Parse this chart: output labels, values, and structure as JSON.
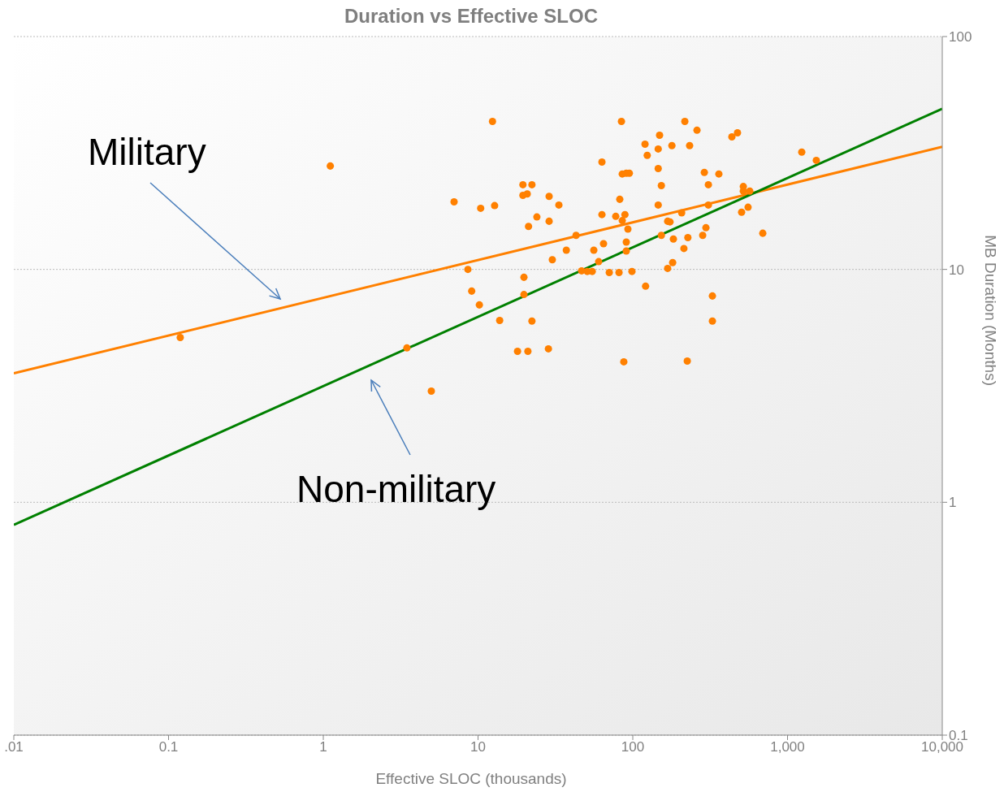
{
  "chart_data": {
    "type": "scatter",
    "title": "Duration vs Effective SLOC",
    "xlabel": "Effective SLOC (thousands)",
    "ylabel": "MB Duration (Months)",
    "log": "xy",
    "grid": "y",
    "legend": false,
    "annotations": [
      "Military",
      "Non-military"
    ],
    "xlim": [
      0.01,
      10000
    ],
    "xticks": [
      {
        "value": 0.01,
        "label": ".01"
      },
      0.1,
      1,
      10,
      100,
      {
        "value": 1000,
        "label": "1,000"
      },
      {
        "value": 10000,
        "label": "10,000"
      }
    ],
    "ylim": [
      0.1,
      100
    ],
    "yticks": [
      0.1,
      1,
      10,
      100
    ],
    "series": [
      {
        "marker": "circle",
        "color": "#ff8000",
        "x": [
          0.119,
          1.11,
          3.47,
          4.99,
          7.0,
          8.6,
          9.1,
          10.2,
          10.4,
          12.4,
          12.8,
          13.8,
          18.0,
          19.5,
          19.5,
          19.8,
          19.8,
          20.8,
          21,
          21.2,
          22.3,
          22.3,
          24.0,
          28.5,
          28.8,
          28.8,
          30.2,
          33.3,
          37.2,
          43.0,
          46.7,
          50.8,
          54.7,
          56.0,
          60.2,
          63.2,
          63.2,
          64.7,
          70.5,
          77.6,
          81.5,
          82.4,
          84.5,
          85.5,
          85.5,
          87.5,
          89,
          90.8,
          90.8,
          90.8,
          93,
          95,
          98.8,
          120,
          124,
          149,
          146,
          146,
          153,
          146,
          153,
          168,
          174,
          183,
          214,
          227,
          207,
          179,
          217,
          233,
          260,
          181,
          168,
          121,
          225,
          327,
          327,
          283,
          297,
          308,
          308,
          290,
          360,
          437,
          475,
          518,
          518,
          570,
          505,
          556,
          692,
          1236,
          1535
        ],
        "values": [
          5.1,
          27.8,
          4.6,
          3.0,
          19.5,
          10,
          8.07,
          7.04,
          18.3,
          43.2,
          18.8,
          6.04,
          4.45,
          23.1,
          20.8,
          9.25,
          7.8,
          21.1,
          4.45,
          15.3,
          23.1,
          6.0,
          16.8,
          4.56,
          20.6,
          16.1,
          11.0,
          18.9,
          12.1,
          14.0,
          9.86,
          9.8,
          9.8,
          12.1,
          10.8,
          17.2,
          28.9,
          12.9,
          9.7,
          16.9,
          9.7,
          20.0,
          43.2,
          16.2,
          25.7,
          4.01,
          17.2,
          25.9,
          13.1,
          12.0,
          14.9,
          25.9,
          9.8,
          34.5,
          30.9,
          37.7,
          32.9,
          27.1,
          22.9,
          18.9,
          14.0,
          16.1,
          16.0,
          13.5,
          12.3,
          13.7,
          17.5,
          34.0,
          43.2,
          34.0,
          39.6,
          10.7,
          10.1,
          8.47,
          4.04,
          7.69,
          6.0,
          14.0,
          15.1,
          18.9,
          23.1,
          26.1,
          25.7,
          37.1,
          38.6,
          22.7,
          21.7,
          21.7,
          17.6,
          18.5,
          14.3,
          31.9,
          29.4
        ]
      },
      {
        "type": "line",
        "marker": "none",
        "color": "#ff8000",
        "x": [
          0.01,
          10000
        ],
        "values": [
          3.58,
          33.6
        ]
      },
      {
        "type": "line",
        "marker": "none",
        "color": "#008000",
        "x": [
          0.01,
          10000
        ],
        "values": [
          0.8,
          49
        ]
      }
    ]
  }
}
